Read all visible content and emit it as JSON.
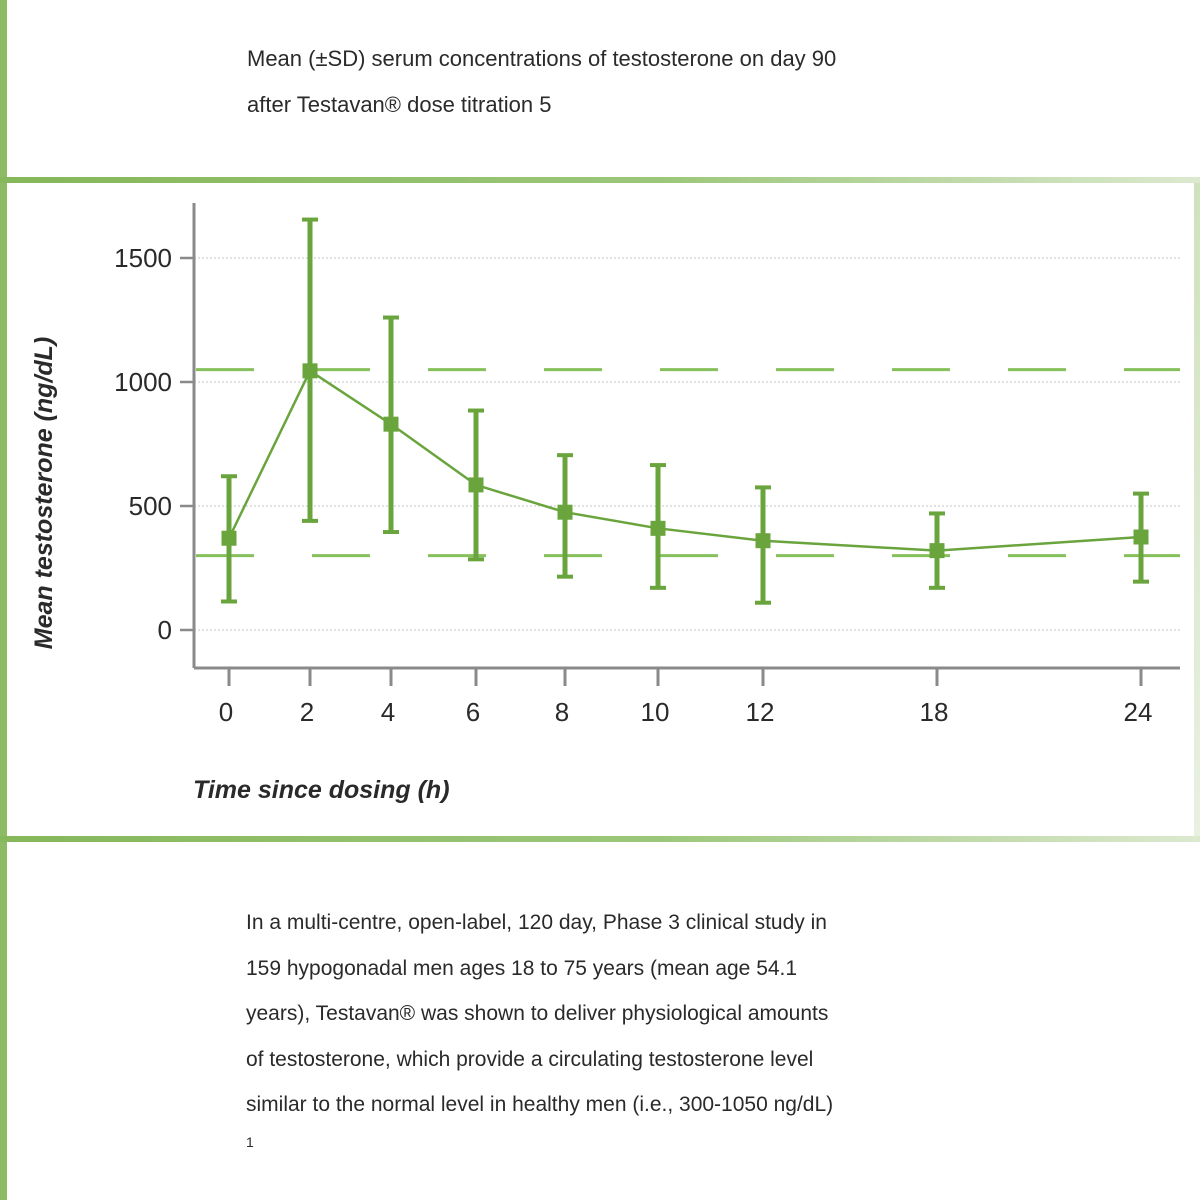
{
  "caption": {
    "line1": "Mean (±SD) serum concentrations of testosterone on day 90",
    "line2": "after Testavan® dose titration 5"
  },
  "chart_data": {
    "type": "line",
    "title": "",
    "xlabel": "Time since dosing (h)",
    "ylabel": "Mean testosterone (ng/dL)",
    "x_ticks": [
      0,
      2,
      4,
      6,
      8,
      10,
      12,
      18,
      24
    ],
    "y_ticks": [
      0,
      500,
      1000,
      1500
    ],
    "ylim": [
      -50,
      1700
    ],
    "grid": "horizontal dotted",
    "series": [
      {
        "x": [
          0,
          2,
          4,
          6,
          8,
          10,
          12,
          18,
          24
        ],
        "mean": [
          370,
          1045,
          830,
          585,
          475,
          410,
          360,
          320,
          375
        ],
        "lower": [
          115,
          440,
          395,
          285,
          215,
          170,
          110,
          170,
          195
        ],
        "upper": [
          620,
          1655,
          1260,
          885,
          705,
          665,
          575,
          470,
          550
        ]
      }
    ],
    "reference_lines": [
      1050,
      300
    ],
    "colors": {
      "series": "#6aa43d",
      "reference": "#86c05a",
      "axis": "#8a8a8a",
      "grid": "#c4c4c4"
    }
  },
  "body": {
    "lines": [
      "In a multi-centre, open-label, 120 day, Phase 3 clinical study in",
      "159 hypogonadal men ages 18 to 75 years (mean age 54.1",
      "years), Testavan® was shown to deliver physiological amounts",
      "of testosterone, which provide a circulating testosterone level",
      "similar to the normal level in healthy men (i.e., 300-1050 ng/dL)"
    ],
    "footnote": "1"
  }
}
